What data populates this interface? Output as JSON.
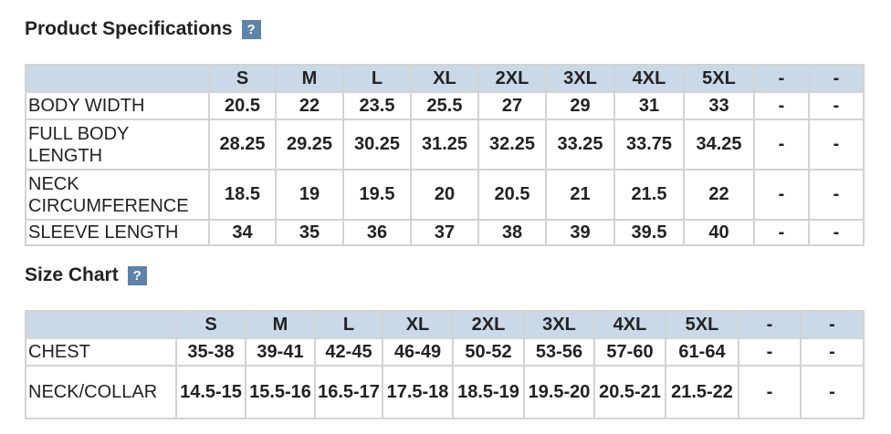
{
  "sections": [
    {
      "title": "Product Specifications",
      "help": "?",
      "table": {
        "columns": [
          "S",
          "M",
          "L",
          "XL",
          "2XL",
          "3XL",
          "4XL",
          "5XL",
          "-",
          "-"
        ],
        "rows": [
          {
            "label": "BODY WIDTH",
            "values": [
              20.5,
              22,
              23.5,
              25.5,
              27,
              29,
              31,
              33,
              "-",
              "-"
            ]
          },
          {
            "label": "FULL BODY LENGTH",
            "values": [
              28.25,
              29.25,
              30.25,
              31.25,
              32.25,
              33.25,
              33.75,
              34.25,
              "-",
              "-"
            ]
          },
          {
            "label": "NECK CIRCUMFERENCE",
            "values": [
              18.5,
              19,
              19.5,
              20,
              20.5,
              21,
              21.5,
              22,
              "-",
              "-"
            ]
          },
          {
            "label": "SLEEVE LENGTH",
            "values": [
              34,
              35,
              36,
              37,
              38,
              39,
              39.5,
              40,
              "-",
              "-"
            ]
          }
        ]
      }
    },
    {
      "title": "Size Chart",
      "help": "?",
      "table": {
        "columns": [
          "S",
          "M",
          "L",
          "XL",
          "2XL",
          "3XL",
          "4XL",
          "5XL",
          "-",
          "-"
        ],
        "rows": [
          {
            "label": "CHEST",
            "values": [
              "35-38",
              "39-41",
              "42-45",
              "46-49",
              "50-52",
              "53-56",
              "57-60",
              "61-64",
              "-",
              "-"
            ]
          },
          {
            "label": "NECK/COLLAR",
            "values": [
              "14.5-15",
              "15.5-16",
              "16.5-17",
              "17.5-18",
              "18.5-19",
              "19.5-20",
              "20.5-21",
              "21.5-22",
              "-",
              "-"
            ]
          }
        ]
      }
    }
  ]
}
